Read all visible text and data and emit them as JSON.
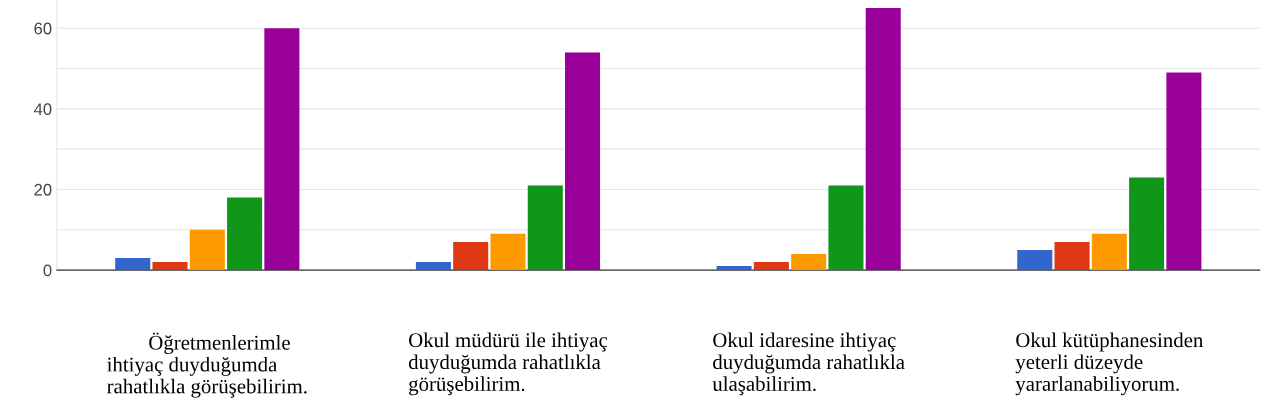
{
  "chart_data": {
    "type": "bar",
    "categories": [
      "        Öğretmenlerimle\nihtiyaç duyduğumda\nrahatlıkla görüşebilirim.",
      "Okul müdürü ile ihtiyaç\nduyduğumda rahatlıkla\ngörüşebilirim.",
      "Okul idaresine ihtiyaç\nduyduğumda rahatlıkla\nulaşabilirim.",
      "Okul kütüphanesinden\nyeterli düzeyde\nyararlanabiliyorum."
    ],
    "series": [
      {
        "color": "#3366cc",
        "values": [
          3,
          2,
          1,
          5
        ]
      },
      {
        "color": "#dc3912",
        "values": [
          2,
          7,
          2,
          7
        ]
      },
      {
        "color": "#ff9900",
        "values": [
          10,
          9,
          4,
          9
        ]
      },
      {
        "color": "#109618",
        "values": [
          18,
          21,
          21,
          23
        ]
      },
      {
        "color": "#990099",
        "values": [
          60,
          54,
          65,
          49
        ]
      }
    ],
    "ylim": [
      0,
      67
    ],
    "yticks": [
      0,
      {
        "value": 10,
        "label": null
      },
      20,
      {
        "value": 30,
        "label": null
      },
      40,
      {
        "value": 50,
        "label": null
      },
      60
    ],
    "grid": "y",
    "legend": false
  }
}
